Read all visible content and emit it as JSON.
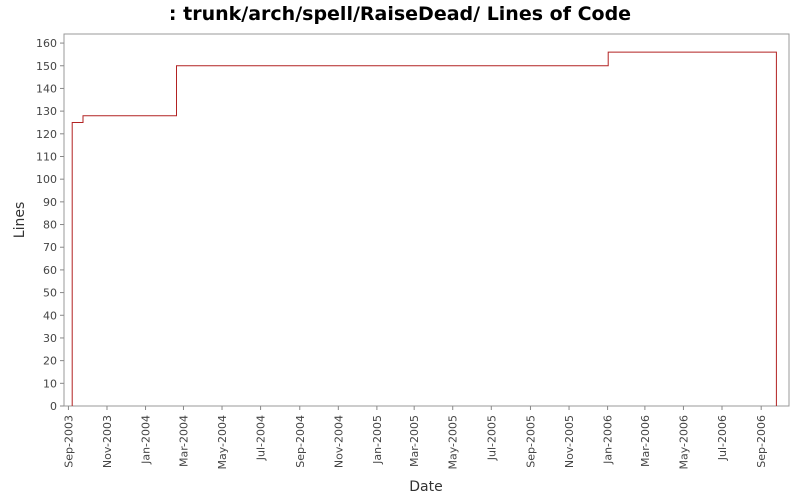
{
  "chart_data": {
    "type": "line",
    "title": ": trunk/arch/spell/RaiseDead/ Lines of Code",
    "xlabel": "Date",
    "ylabel": "Lines",
    "ylim": [
      0,
      164
    ],
    "xlim": [
      "2003-08-25",
      "2006-10-15"
    ],
    "yticks": [
      0,
      10,
      20,
      30,
      40,
      50,
      60,
      70,
      80,
      90,
      100,
      110,
      120,
      130,
      140,
      150,
      160
    ],
    "xticks": [
      {
        "date": "2003-09-01",
        "label": "Sep-2003"
      },
      {
        "date": "2003-11-01",
        "label": "Nov-2003"
      },
      {
        "date": "2004-01-01",
        "label": "Jan-2004"
      },
      {
        "date": "2004-03-01",
        "label": "Mar-2004"
      },
      {
        "date": "2004-05-01",
        "label": "May-2004"
      },
      {
        "date": "2004-07-01",
        "label": "Jul-2004"
      },
      {
        "date": "2004-09-01",
        "label": "Sep-2004"
      },
      {
        "date": "2004-11-01",
        "label": "Nov-2004"
      },
      {
        "date": "2005-01-01",
        "label": "Jan-2005"
      },
      {
        "date": "2005-03-01",
        "label": "Mar-2005"
      },
      {
        "date": "2005-05-01",
        "label": "May-2005"
      },
      {
        "date": "2005-07-01",
        "label": "Jul-2005"
      },
      {
        "date": "2005-09-01",
        "label": "Sep-2005"
      },
      {
        "date": "2005-11-01",
        "label": "Nov-2005"
      },
      {
        "date": "2006-01-01",
        "label": "Jan-2006"
      },
      {
        "date": "2006-03-01",
        "label": "Mar-2006"
      },
      {
        "date": "2006-05-01",
        "label": "May-2006"
      },
      {
        "date": "2006-07-01",
        "label": "Jul-2006"
      },
      {
        "date": "2006-09-01",
        "label": "Sep-2006"
      }
    ],
    "grid": false,
    "series": [
      {
        "color": "#b22222",
        "step": true,
        "points": [
          {
            "x": "2003-09-07",
            "y": 0
          },
          {
            "x": "2003-09-07",
            "y": 125
          },
          {
            "x": "2003-09-24",
            "y": 125
          },
          {
            "x": "2003-09-24",
            "y": 128
          },
          {
            "x": "2004-02-19",
            "y": 128
          },
          {
            "x": "2004-02-19",
            "y": 150
          },
          {
            "x": "2006-01-02",
            "y": 150
          },
          {
            "x": "2006-01-02",
            "y": 156
          },
          {
            "x": "2006-09-25",
            "y": 156
          },
          {
            "x": "2006-09-25",
            "y": 0
          }
        ]
      }
    ]
  }
}
